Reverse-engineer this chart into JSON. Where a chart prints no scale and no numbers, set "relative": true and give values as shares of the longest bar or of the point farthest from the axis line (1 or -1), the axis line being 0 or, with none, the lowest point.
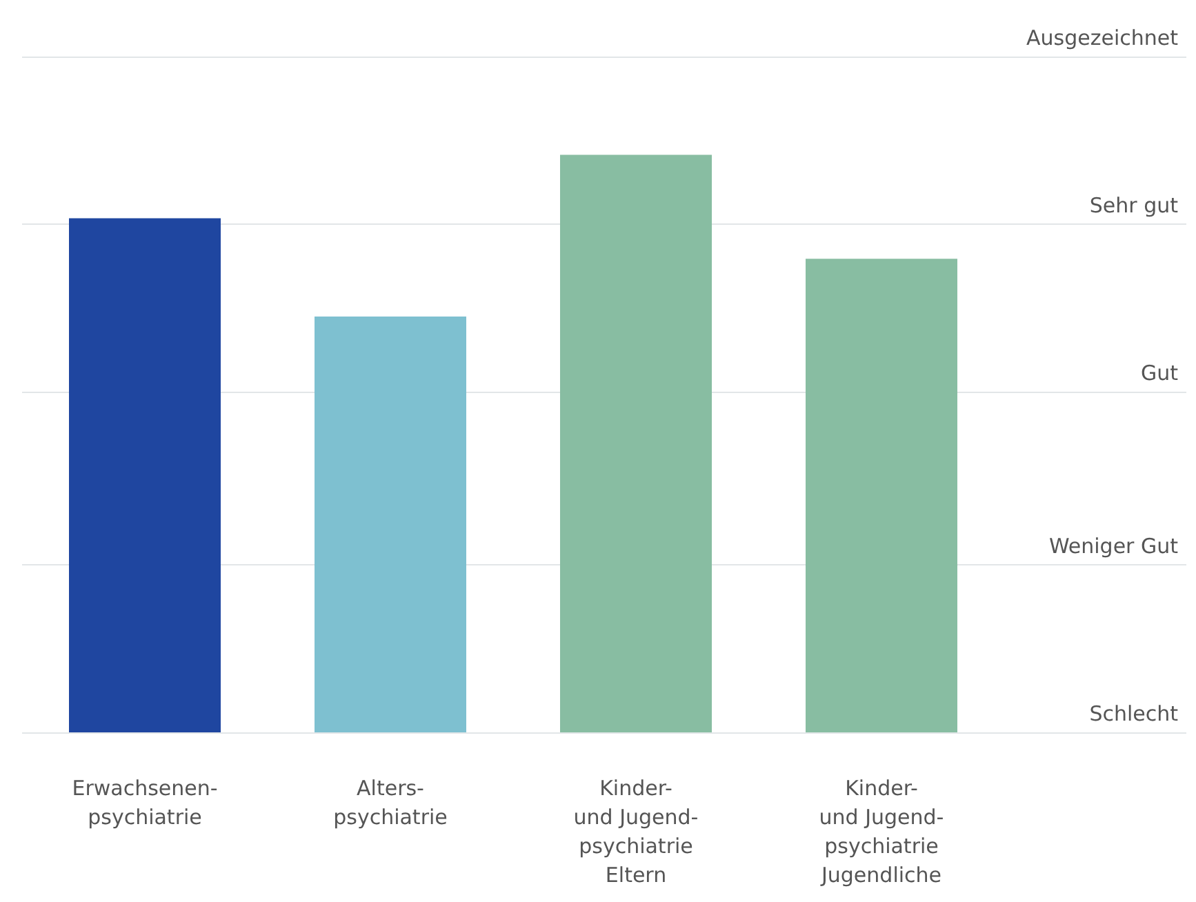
{
  "chart_data": {
    "type": "bar",
    "relative": true,
    "categories": [
      "Erwachsenen-\npsychiatrie",
      "Alters-\npsychiatrie",
      "Kinder-\nund Jugend-\npsychiatrie\nEltern",
      "Kinder-\nund Jugend-\npsychiatrie\nJugendliche"
    ],
    "values": [
      0.89,
      0.72,
      1,
      0.82
    ],
    "colors": [
      "#1f46a0",
      "#7ec0d0",
      "#88bda2",
      "#88bda2"
    ],
    "ref_lines": [
      {
        "axis": "y",
        "value": 0,
        "label": "Schlecht",
        "color": "#e2e6e8"
      },
      {
        "axis": "y",
        "value": 0.29,
        "label": "Weniger Gut",
        "color": "#e2e6e8"
      },
      {
        "axis": "y",
        "value": 0.59,
        "label": "Gut",
        "color": "#e2e6e8"
      },
      {
        "axis": "y",
        "value": 0.88,
        "label": "Sehr gut",
        "color": "#e2e6e8"
      },
      {
        "axis": "y",
        "value": 1.17,
        "label": "Ausgezeichnet",
        "color": "#e2e6e8"
      }
    ]
  }
}
